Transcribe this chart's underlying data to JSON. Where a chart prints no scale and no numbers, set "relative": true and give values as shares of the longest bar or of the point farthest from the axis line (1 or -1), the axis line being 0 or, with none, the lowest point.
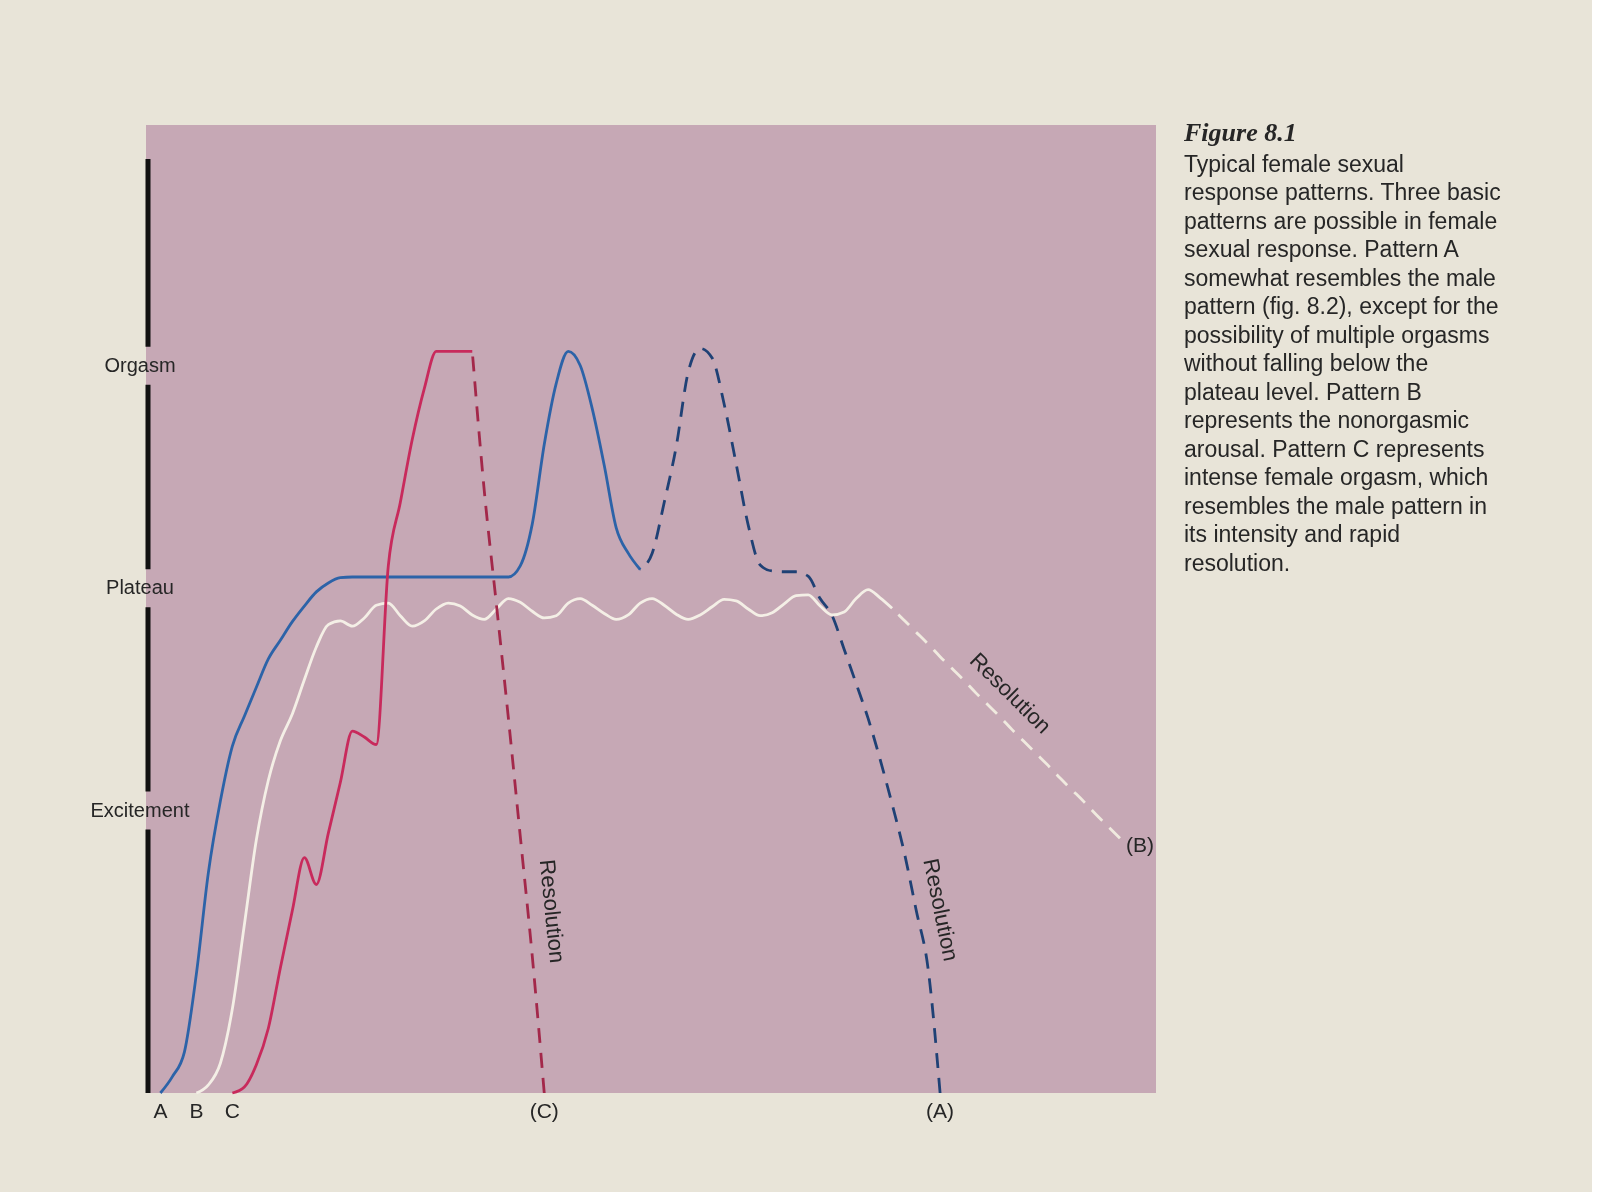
{
  "chart_data": {
    "type": "line",
    "relative": true,
    "title": "Figure 8.1",
    "subtitle": "Typical female sexual response patterns. Three basic patterns are possible in female sexual response. Pattern A somewhat resembles the male pattern (fig. 8.2), except for the possibility of multiple orgasms without falling below the plateau level. Pattern B represents the nonorgasmic arousal. Pattern C represents intense female orgasm, which resembles the male pattern in its intensity and rapid resolution.",
    "categories": [
      null,
      null,
      null,
      null,
      null,
      null,
      null,
      null,
      null,
      null,
      null,
      null,
      null,
      null,
      null,
      null,
      null,
      null,
      null,
      null,
      null,
      null,
      null,
      null,
      null,
      null,
      null,
      null,
      null,
      null,
      null,
      null,
      null,
      null,
      null,
      null,
      null,
      null,
      null,
      null,
      null,
      null,
      null,
      null,
      null,
      null,
      null,
      null,
      null,
      null,
      null,
      null,
      null,
      null,
      null,
      null,
      null,
      null,
      null,
      null,
      null,
      null,
      null,
      null,
      null,
      null,
      null,
      null,
      null,
      null,
      null,
      null,
      null,
      null,
      null,
      null,
      null,
      null,
      null,
      null,
      null
    ],
    "series": [
      {
        "name": "B",
        "color": "#f4efe6",
        "line_style": "solid",
        "values": [
          null,
          null,
          null,
          0,
          0.011,
          0.04,
          0.113,
          0.226,
          0.34,
          0.42,
          0.473,
          0.509,
          0.555,
          0.599,
          0.629,
          0.634,
          0.627,
          0.638,
          0.655,
          0.658,
          0.641,
          0.627,
          0.634,
          0.65,
          0.658,
          0.654,
          0.642,
          0.636,
          0.65,
          0.664,
          0.659,
          0.647,
          0.638,
          0.641,
          0.658,
          0.664,
          0.655,
          0.644,
          0.636,
          0.642,
          0.658,
          0.664,
          0.655,
          0.643,
          0.636,
          0.642,
          0.653,
          0.663,
          0.661,
          0.65,
          0.641,
          0.645,
          0.657,
          0.668,
          0.669,
          0.654,
          0.642,
          0.646,
          0.664,
          0.676,
          0.665,
          0.651,
          null,
          null,
          null,
          null,
          null,
          null,
          null,
          null,
          null,
          null,
          null,
          null,
          null,
          null,
          null,
          null,
          null,
          null,
          null
        ]
      },
      {
        "name": "(B)",
        "color": "#f0eadf",
        "line_style": "dashed",
        "values": [
          null,
          null,
          null,
          null,
          null,
          null,
          null,
          null,
          null,
          null,
          null,
          null,
          null,
          null,
          null,
          null,
          null,
          null,
          null,
          null,
          null,
          null,
          null,
          null,
          null,
          null,
          null,
          null,
          null,
          null,
          null,
          null,
          null,
          null,
          null,
          null,
          null,
          null,
          null,
          null,
          null,
          null,
          null,
          null,
          null,
          null,
          null,
          null,
          null,
          null,
          null,
          null,
          null,
          null,
          null,
          null,
          null,
          null,
          null,
          null,
          null,
          0.651,
          0.635,
          0.619,
          0.603,
          0.586,
          0.57,
          0.554,
          0.537,
          0.521,
          0.505,
          0.488,
          0.472,
          0.456,
          0.44,
          0.423,
          0.407,
          0.391,
          0.374,
          0.358,
          0.342
        ]
      },
      {
        "name": "A",
        "color": "#2c63a8",
        "line_style": "solid",
        "values": [
          0,
          0.022,
          0.055,
          0.16,
          0.296,
          0.392,
          0.466,
          0.506,
          0.545,
          0.583,
          0.608,
          0.633,
          0.654,
          0.673,
          0.685,
          0.692,
          0.693,
          0.693,
          0.693,
          0.693,
          0.693,
          0.693,
          0.693,
          0.693,
          0.693,
          0.693,
          0.693,
          0.693,
          0.693,
          0.693,
          0.708,
          0.764,
          0.871,
          0.953,
          0.996,
          0.977,
          0.919,
          0.843,
          0.759,
          0.725,
          0.703,
          null,
          null,
          null,
          null,
          null,
          null,
          null,
          null,
          null,
          null,
          null,
          null,
          null,
          null,
          null,
          null,
          null,
          null,
          null,
          null,
          null,
          null,
          null,
          null,
          null,
          null,
          null,
          null,
          null,
          null,
          null,
          null,
          null,
          null,
          null,
          null,
          null,
          null,
          null,
          null
        ]
      },
      {
        "name": "(A)",
        "color": "#1f4175",
        "line_style": "dashed",
        "values": [
          null,
          null,
          null,
          null,
          null,
          null,
          null,
          null,
          null,
          null,
          null,
          null,
          null,
          null,
          null,
          null,
          null,
          null,
          null,
          null,
          null,
          null,
          null,
          null,
          null,
          null,
          null,
          null,
          null,
          null,
          null,
          null,
          null,
          null,
          null,
          null,
          null,
          null,
          null,
          null,
          0.703,
          0.725,
          0.793,
          0.868,
          0.968,
          1,
          0.987,
          0.925,
          0.845,
          0.763,
          0.709,
          0.701,
          0.7,
          0.7,
          0.694,
          0.664,
          0.641,
          0.596,
          0.55,
          0.503,
          0.448,
          0.388,
          0.324,
          0.246,
          0.167,
          0,
          null,
          null,
          null,
          null,
          null,
          null,
          null,
          null,
          null,
          null,
          null,
          null,
          null,
          null,
          null
        ]
      },
      {
        "name": "C",
        "color": "#c82a5c",
        "line_style": "solid",
        "values": [
          null,
          null,
          null,
          null,
          null,
          null,
          0,
          0.008,
          0.038,
          0.087,
          0.168,
          0.245,
          0.316,
          0.28,
          0.349,
          0.417,
          0.486,
          0.478,
          0.468,
          0.708,
          0.793,
          0.878,
          0.946,
          0.996,
          0.996,
          0.996,
          0.996,
          null,
          null,
          null,
          null,
          null,
          null,
          null,
          null,
          null,
          null,
          null,
          null,
          null,
          null,
          null,
          null,
          null,
          null,
          null,
          null,
          null,
          null,
          null,
          null,
          null,
          null,
          null,
          null,
          null,
          null,
          null,
          null,
          null,
          null,
          null,
          null,
          null,
          null,
          null,
          null,
          null,
          null,
          null,
          null,
          null,
          null,
          null,
          null,
          null,
          null,
          null,
          null,
          null,
          null
        ]
      },
      {
        "name": "(C)",
        "color": "#a3284a",
        "line_style": "dashed",
        "values": [
          null,
          null,
          null,
          null,
          null,
          null,
          null,
          null,
          null,
          null,
          null,
          null,
          null,
          null,
          null,
          null,
          null,
          null,
          null,
          null,
          null,
          null,
          null,
          null,
          null,
          null,
          0.996,
          0.809,
          0.658,
          0.505,
          0.345,
          0.184,
          0,
          null,
          null,
          null,
          null,
          null,
          null,
          null,
          null,
          null,
          null,
          null,
          null,
          null,
          null,
          null,
          null,
          null,
          null,
          null,
          null,
          null,
          null,
          null,
          null,
          null,
          null,
          null,
          null,
          null,
          null,
          null,
          null,
          null,
          null,
          null,
          null,
          null,
          null,
          null,
          null,
          null,
          null,
          null,
          null,
          null,
          null,
          null,
          null
        ]
      }
    ],
    "annotations": [
      "Orgasm",
      "Plateau",
      "Excitement",
      "Resolution",
      "Resolution",
      "Resolution"
    ]
  }
}
